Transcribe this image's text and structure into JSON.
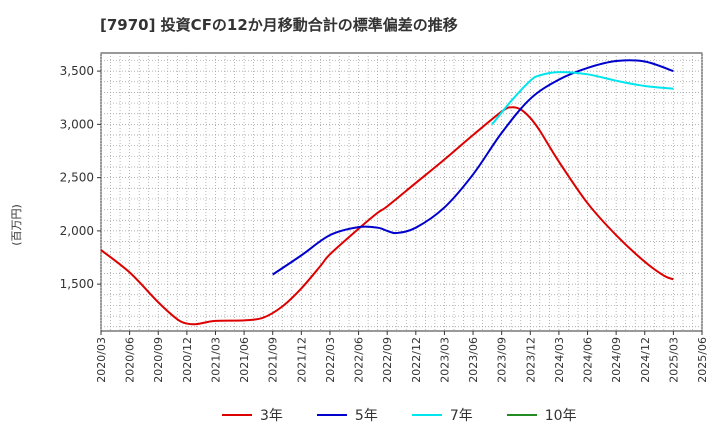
{
  "title": "[7970]  投資CFの12か月移動合計の標準偏差の推移",
  "y_unit_label": "(百万円)",
  "colors": {
    "3年": "#dd0000",
    "5年": "#0000cc",
    "7年": "#00e5ee",
    "10年": "#228b22"
  },
  "chart_data": {
    "type": "line",
    "title": "[7970]  投資CFの12か月移動合計の標準偏差の推移",
    "ylabel": "(百万円)",
    "xlabel": "",
    "ylim": [
      1060,
      3670
    ],
    "yticks": [
      1500,
      2000,
      2500,
      3000,
      3500
    ],
    "ytick_labels": [
      "1,500",
      "2,000",
      "2,500",
      "3,000",
      "3,500"
    ],
    "x_ticks": [
      "2020/03",
      "2020/06",
      "2020/09",
      "2020/12",
      "2021/03",
      "2021/06",
      "2021/09",
      "2021/12",
      "2022/03",
      "2022/06",
      "2022/09",
      "2022/12",
      "2023/03",
      "2023/06",
      "2023/09",
      "2023/12",
      "2024/03",
      "2024/06",
      "2024/09",
      "2024/12",
      "2025/03",
      "2025/06"
    ],
    "grid": true,
    "legend": "bottom",
    "series": [
      {
        "name": "3年",
        "x": [
          "2020/03",
          "2020/06",
          "2020/09",
          "2020/11",
          "2020/12",
          "2021/01",
          "2021/03",
          "2021/06",
          "2021/08",
          "2021/10",
          "2021/12",
          "2022/02",
          "2022/03",
          "2022/06",
          "2022/08",
          "2022/09",
          "2022/12",
          "2023/03",
          "2023/06",
          "2023/09",
          "2023/10",
          "2023/11",
          "2023/12",
          "2024/01",
          "2024/03",
          "2024/06",
          "2024/09",
          "2024/12",
          "2025/02",
          "2025/03"
        ],
        "values": [
          1820,
          1610,
          1330,
          1170,
          1130,
          1125,
          1155,
          1160,
          1185,
          1290,
          1460,
          1670,
          1780,
          2020,
          2170,
          2230,
          2450,
          2670,
          2900,
          3120,
          3160,
          3140,
          3060,
          2940,
          2650,
          2260,
          1960,
          1710,
          1580,
          1545
        ]
      },
      {
        "name": "5年",
        "x": [
          "2021/09",
          "2021/12",
          "2022/03",
          "2022/06",
          "2022/08",
          "2022/09",
          "2022/10",
          "2022/12",
          "2023/03",
          "2023/06",
          "2023/09",
          "2023/12",
          "2024/03",
          "2024/06",
          "2024/09",
          "2024/12",
          "2025/03"
        ],
        "values": [
          1590,
          1770,
          1960,
          2035,
          2030,
          2000,
          1980,
          2030,
          2220,
          2530,
          2920,
          3240,
          3420,
          3530,
          3595,
          3590,
          3500
        ]
      },
      {
        "name": "7年",
        "x": [
          "2023/08",
          "2023/10",
          "2023/12",
          "2024/01",
          "2024/03",
          "2024/06",
          "2024/09",
          "2024/12",
          "2025/03"
        ],
        "values": [
          3000,
          3220,
          3410,
          3460,
          3490,
          3470,
          3410,
          3360,
          3335
        ]
      },
      {
        "name": "10年",
        "x": [],
        "values": []
      }
    ]
  }
}
